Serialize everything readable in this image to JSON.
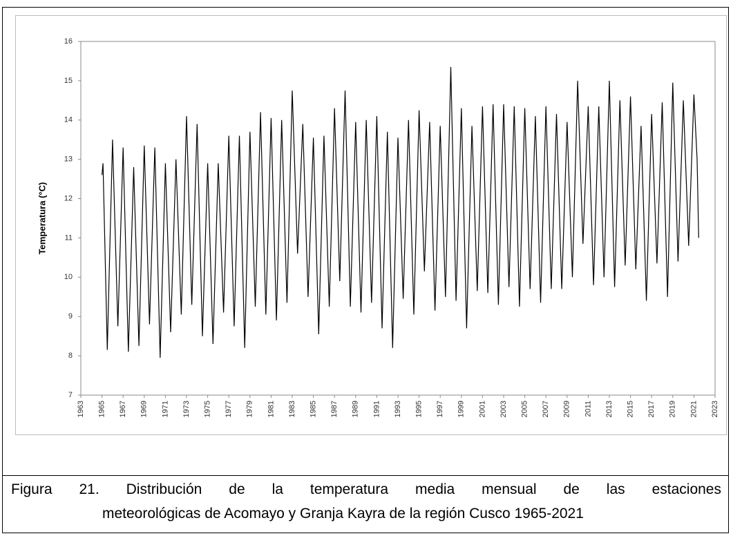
{
  "chart_data": {
    "type": "line",
    "y_label": "Temperatura (°C)",
    "color": "#000000",
    "xlim": [
      1963,
      2023
    ],
    "xticks": [
      1963,
      1965,
      1967,
      1969,
      1971,
      1973,
      1975,
      1977,
      1979,
      1981,
      1983,
      1985,
      1987,
      1989,
      1991,
      1993,
      1995,
      1997,
      1999,
      2001,
      2003,
      2005,
      2007,
      2009,
      2011,
      2013,
      2015,
      2017,
      2019,
      2021,
      2023
    ],
    "ylim": [
      7,
      16
    ],
    "yticks": [
      7,
      8,
      9,
      10,
      11,
      12,
      13,
      14,
      15,
      16
    ],
    "x": [
      1965.0,
      1965.1,
      1965.5,
      1966.0,
      1966.5,
      1967.0,
      1967.5,
      1968.0,
      1968.5,
      1969.0,
      1969.5,
      1970.0,
      1970.5,
      1971.0,
      1971.5,
      1972.0,
      1972.5,
      1973.0,
      1973.5,
      1974.0,
      1974.5,
      1975.0,
      1975.5,
      1976.0,
      1976.5,
      1977.0,
      1977.5,
      1978.0,
      1978.5,
      1979.0,
      1979.5,
      1980.0,
      1980.5,
      1981.0,
      1981.5,
      1982.0,
      1982.5,
      1983.0,
      1983.5,
      1984.0,
      1984.5,
      1985.0,
      1985.5,
      1986.0,
      1986.5,
      1987.0,
      1987.5,
      1988.0,
      1988.5,
      1989.0,
      1989.5,
      1990.0,
      1990.5,
      1991.0,
      1991.5,
      1992.0,
      1992.5,
      1993.0,
      1993.5,
      1994.0,
      1994.5,
      1995.0,
      1995.5,
      1996.0,
      1996.5,
      1997.0,
      1997.5,
      1998.0,
      1998.5,
      1999.0,
      1999.5,
      2000.0,
      2000.5,
      2001.0,
      2001.5,
      2002.0,
      2002.5,
      2003.0,
      2003.5,
      2004.0,
      2004.5,
      2005.0,
      2005.5,
      2006.0,
      2006.5,
      2007.0,
      2007.5,
      2008.0,
      2008.5,
      2009.0,
      2009.5,
      2010.0,
      2010.5,
      2011.0,
      2011.5,
      2012.0,
      2012.5,
      2013.0,
      2013.5,
      2014.0,
      2014.5,
      2015.0,
      2015.5,
      2016.0,
      2016.5,
      2017.0,
      2017.5,
      2018.0,
      2018.5,
      2019.0,
      2019.5,
      2020.0,
      2020.5,
      2021.0,
      2021.3,
      2021.45
    ],
    "values": [
      12.6,
      12.9,
      8.15,
      13.5,
      8.75,
      13.3,
      8.1,
      12.8,
      8.25,
      13.35,
      8.8,
      13.3,
      7.95,
      12.9,
      8.6,
      13.0,
      9.05,
      14.1,
      9.3,
      13.9,
      8.5,
      12.9,
      8.3,
      12.9,
      9.1,
      13.6,
      8.75,
      13.6,
      8.2,
      13.7,
      9.25,
      14.2,
      9.05,
      14.05,
      8.9,
      14.0,
      9.35,
      14.75,
      10.6,
      13.9,
      9.5,
      13.55,
      8.55,
      13.6,
      9.25,
      14.3,
      9.9,
      14.75,
      9.25,
      13.95,
      9.1,
      14.0,
      9.35,
      14.1,
      8.7,
      13.7,
      8.2,
      13.55,
      9.45,
      14.0,
      9.05,
      14.25,
      10.15,
      13.95,
      9.15,
      13.85,
      9.5,
      15.35,
      9.4,
      14.3,
      8.7,
      13.85,
      9.65,
      14.35,
      9.6,
      14.4,
      9.3,
      14.4,
      9.75,
      14.35,
      9.25,
      14.3,
      9.7,
      14.1,
      9.35,
      14.35,
      9.7,
      14.15,
      9.7,
      13.95,
      10.0,
      15.0,
      10.85,
      14.35,
      9.8,
      14.35,
      10.0,
      15.0,
      9.75,
      14.5,
      10.3,
      14.6,
      10.2,
      13.85,
      9.4,
      14.15,
      10.35,
      14.45,
      9.5,
      14.95,
      10.4,
      14.5,
      10.8,
      14.65,
      13.0,
      11.0
    ]
  },
  "caption": [
    "Figura 21. Distribución de la temperatura media mensual de las estaciones",
    "meteorológicas de Acomayo y Granja Kayra de la región Cusco 1965-2021"
  ]
}
